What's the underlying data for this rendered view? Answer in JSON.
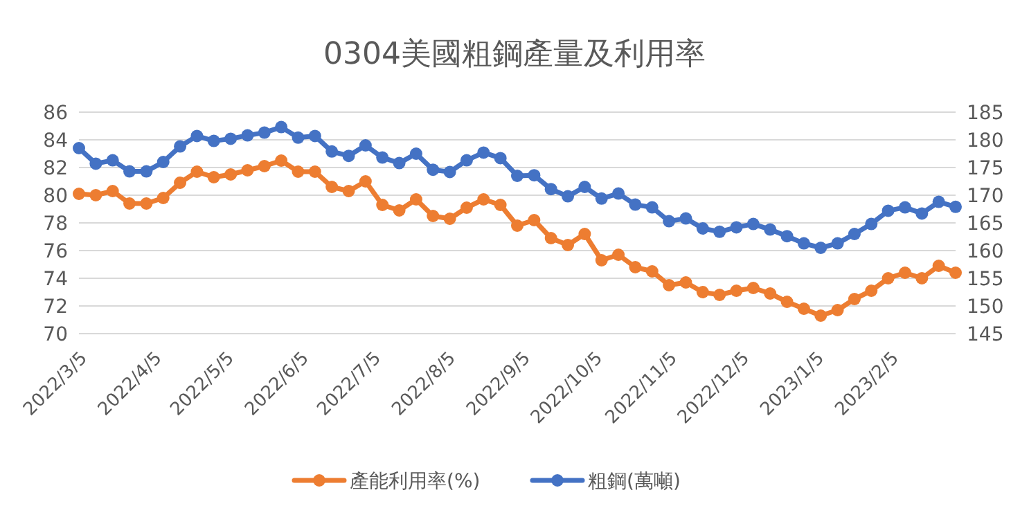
{
  "chart_data": {
    "type": "line",
    "title": "0304美國粗鋼產量及利用率",
    "x": [
      "2022-03-05",
      "2022-03-12",
      "2022-03-19",
      "2022-03-26",
      "2022-04-02",
      "2022-04-09",
      "2022-04-16",
      "2022-04-23",
      "2022-04-30",
      "2022-05-07",
      "2022-05-14",
      "2022-05-21",
      "2022-05-28",
      "2022-06-04",
      "2022-06-11",
      "2022-06-18",
      "2022-06-25",
      "2022-07-02",
      "2022-07-09",
      "2022-07-16",
      "2022-07-23",
      "2022-07-30",
      "2022-08-06",
      "2022-08-13",
      "2022-08-20",
      "2022-08-27",
      "2022-09-03",
      "2022-09-10",
      "2022-09-17",
      "2022-09-24",
      "2022-10-01",
      "2022-10-08",
      "2022-10-15",
      "2022-10-22",
      "2022-10-29",
      "2022-11-05",
      "2022-11-12",
      "2022-11-19",
      "2022-11-26",
      "2022-12-03",
      "2022-12-10",
      "2022-12-17",
      "2022-12-24",
      "2022-12-31",
      "2023-01-07",
      "2023-01-14",
      "2023-01-21",
      "2023-01-28",
      "2023-02-04",
      "2023-02-11",
      "2023-02-18",
      "2023-02-25",
      "2023-03-04"
    ],
    "series": [
      {
        "name": "產能利用率(%)",
        "color": "#ed7d31",
        "values": [
          80.1,
          80.0,
          80.3,
          79.4,
          79.4,
          79.8,
          80.9,
          81.7,
          81.3,
          81.5,
          81.8,
          82.1,
          82.5,
          81.7,
          81.7,
          80.6,
          80.3,
          81.0,
          79.3,
          78.9,
          79.7,
          78.5,
          78.3,
          79.1,
          79.7,
          79.3,
          77.8,
          78.2,
          76.9,
          76.4,
          77.2,
          75.3,
          75.7,
          74.8,
          74.5,
          73.5,
          73.7,
          73.0,
          72.8,
          73.1,
          73.3,
          72.9,
          72.3,
          71.8,
          71.3,
          71.7,
          72.5,
          73.1,
          74.0,
          74.4,
          74.0,
          74.9,
          74.4
        ]
      },
      {
        "name": "粗鋼(萬噸)",
        "color": "#4472c4",
        "axis": "y2",
        "values": [
          178.5,
          175.7,
          176.3,
          174.3,
          174.3,
          176.0,
          178.8,
          180.7,
          179.8,
          180.2,
          180.8,
          181.3,
          182.3,
          180.4,
          180.7,
          177.9,
          177.1,
          179.0,
          176.8,
          175.8,
          177.5,
          174.6,
          174.2,
          176.3,
          177.7,
          176.7,
          173.5,
          173.6,
          171.1,
          169.8,
          171.5,
          169.4,
          170.3,
          168.3,
          167.8,
          165.3,
          165.8,
          164.0,
          163.4,
          164.2,
          164.8,
          163.8,
          162.6,
          161.3,
          160.5,
          161.3,
          163.0,
          164.8,
          167.2,
          167.8,
          166.7,
          168.8,
          167.9
        ]
      }
    ],
    "xlim": [
      "2022-03-05",
      "2023-03-04"
    ],
    "xticks": [
      {
        "value": "2022-03-05",
        "label": "2022/3/5"
      },
      {
        "value": "2022-04-05",
        "label": "2022/4/5"
      },
      {
        "value": "2022-05-05",
        "label": "2022/5/5"
      },
      {
        "value": "2022-06-05",
        "label": "2022/6/5"
      },
      {
        "value": "2022-07-05",
        "label": "2022/7/5"
      },
      {
        "value": "2022-08-05",
        "label": "2022/8/5"
      },
      {
        "value": "2022-09-05",
        "label": "2022/9/5"
      },
      {
        "value": "2022-10-05",
        "label": "2022/10/5"
      },
      {
        "value": "2022-11-05",
        "label": "2022/11/5"
      },
      {
        "value": "2022-12-05",
        "label": "2022/12/5"
      },
      {
        "value": "2023-01-05",
        "label": "2023/1/5"
      },
      {
        "value": "2023-02-05",
        "label": "2023/2/5"
      }
    ],
    "ylim": [
      70,
      86
    ],
    "yticks": [
      70,
      72,
      74,
      76,
      78,
      80,
      82,
      84,
      86
    ],
    "y2lim": [
      145,
      185
    ],
    "y2ticks": [
      145,
      150,
      155,
      160,
      165,
      170,
      175,
      180,
      185
    ],
    "grid": "y",
    "legend": "bottom",
    "marker": "circle",
    "line_style": "solid"
  }
}
